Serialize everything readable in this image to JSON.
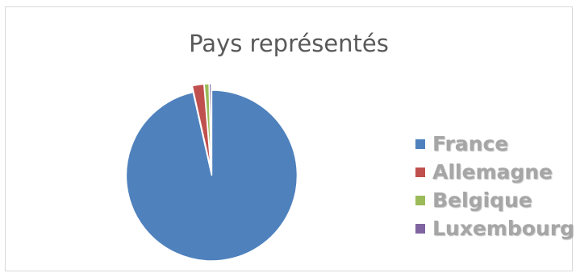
{
  "chart_data": {
    "type": "pie",
    "title": "Pays représentés",
    "categories": [
      "France",
      "Allemagne",
      "Belgique",
      "Luxembourg"
    ],
    "values": [
      96.5,
      2.2,
      0.9,
      0.4
    ],
    "colors": [
      "#4f81bd",
      "#c0504d",
      "#9bbb59",
      "#8064a2"
    ],
    "exploded": true,
    "legend_position": "right"
  }
}
